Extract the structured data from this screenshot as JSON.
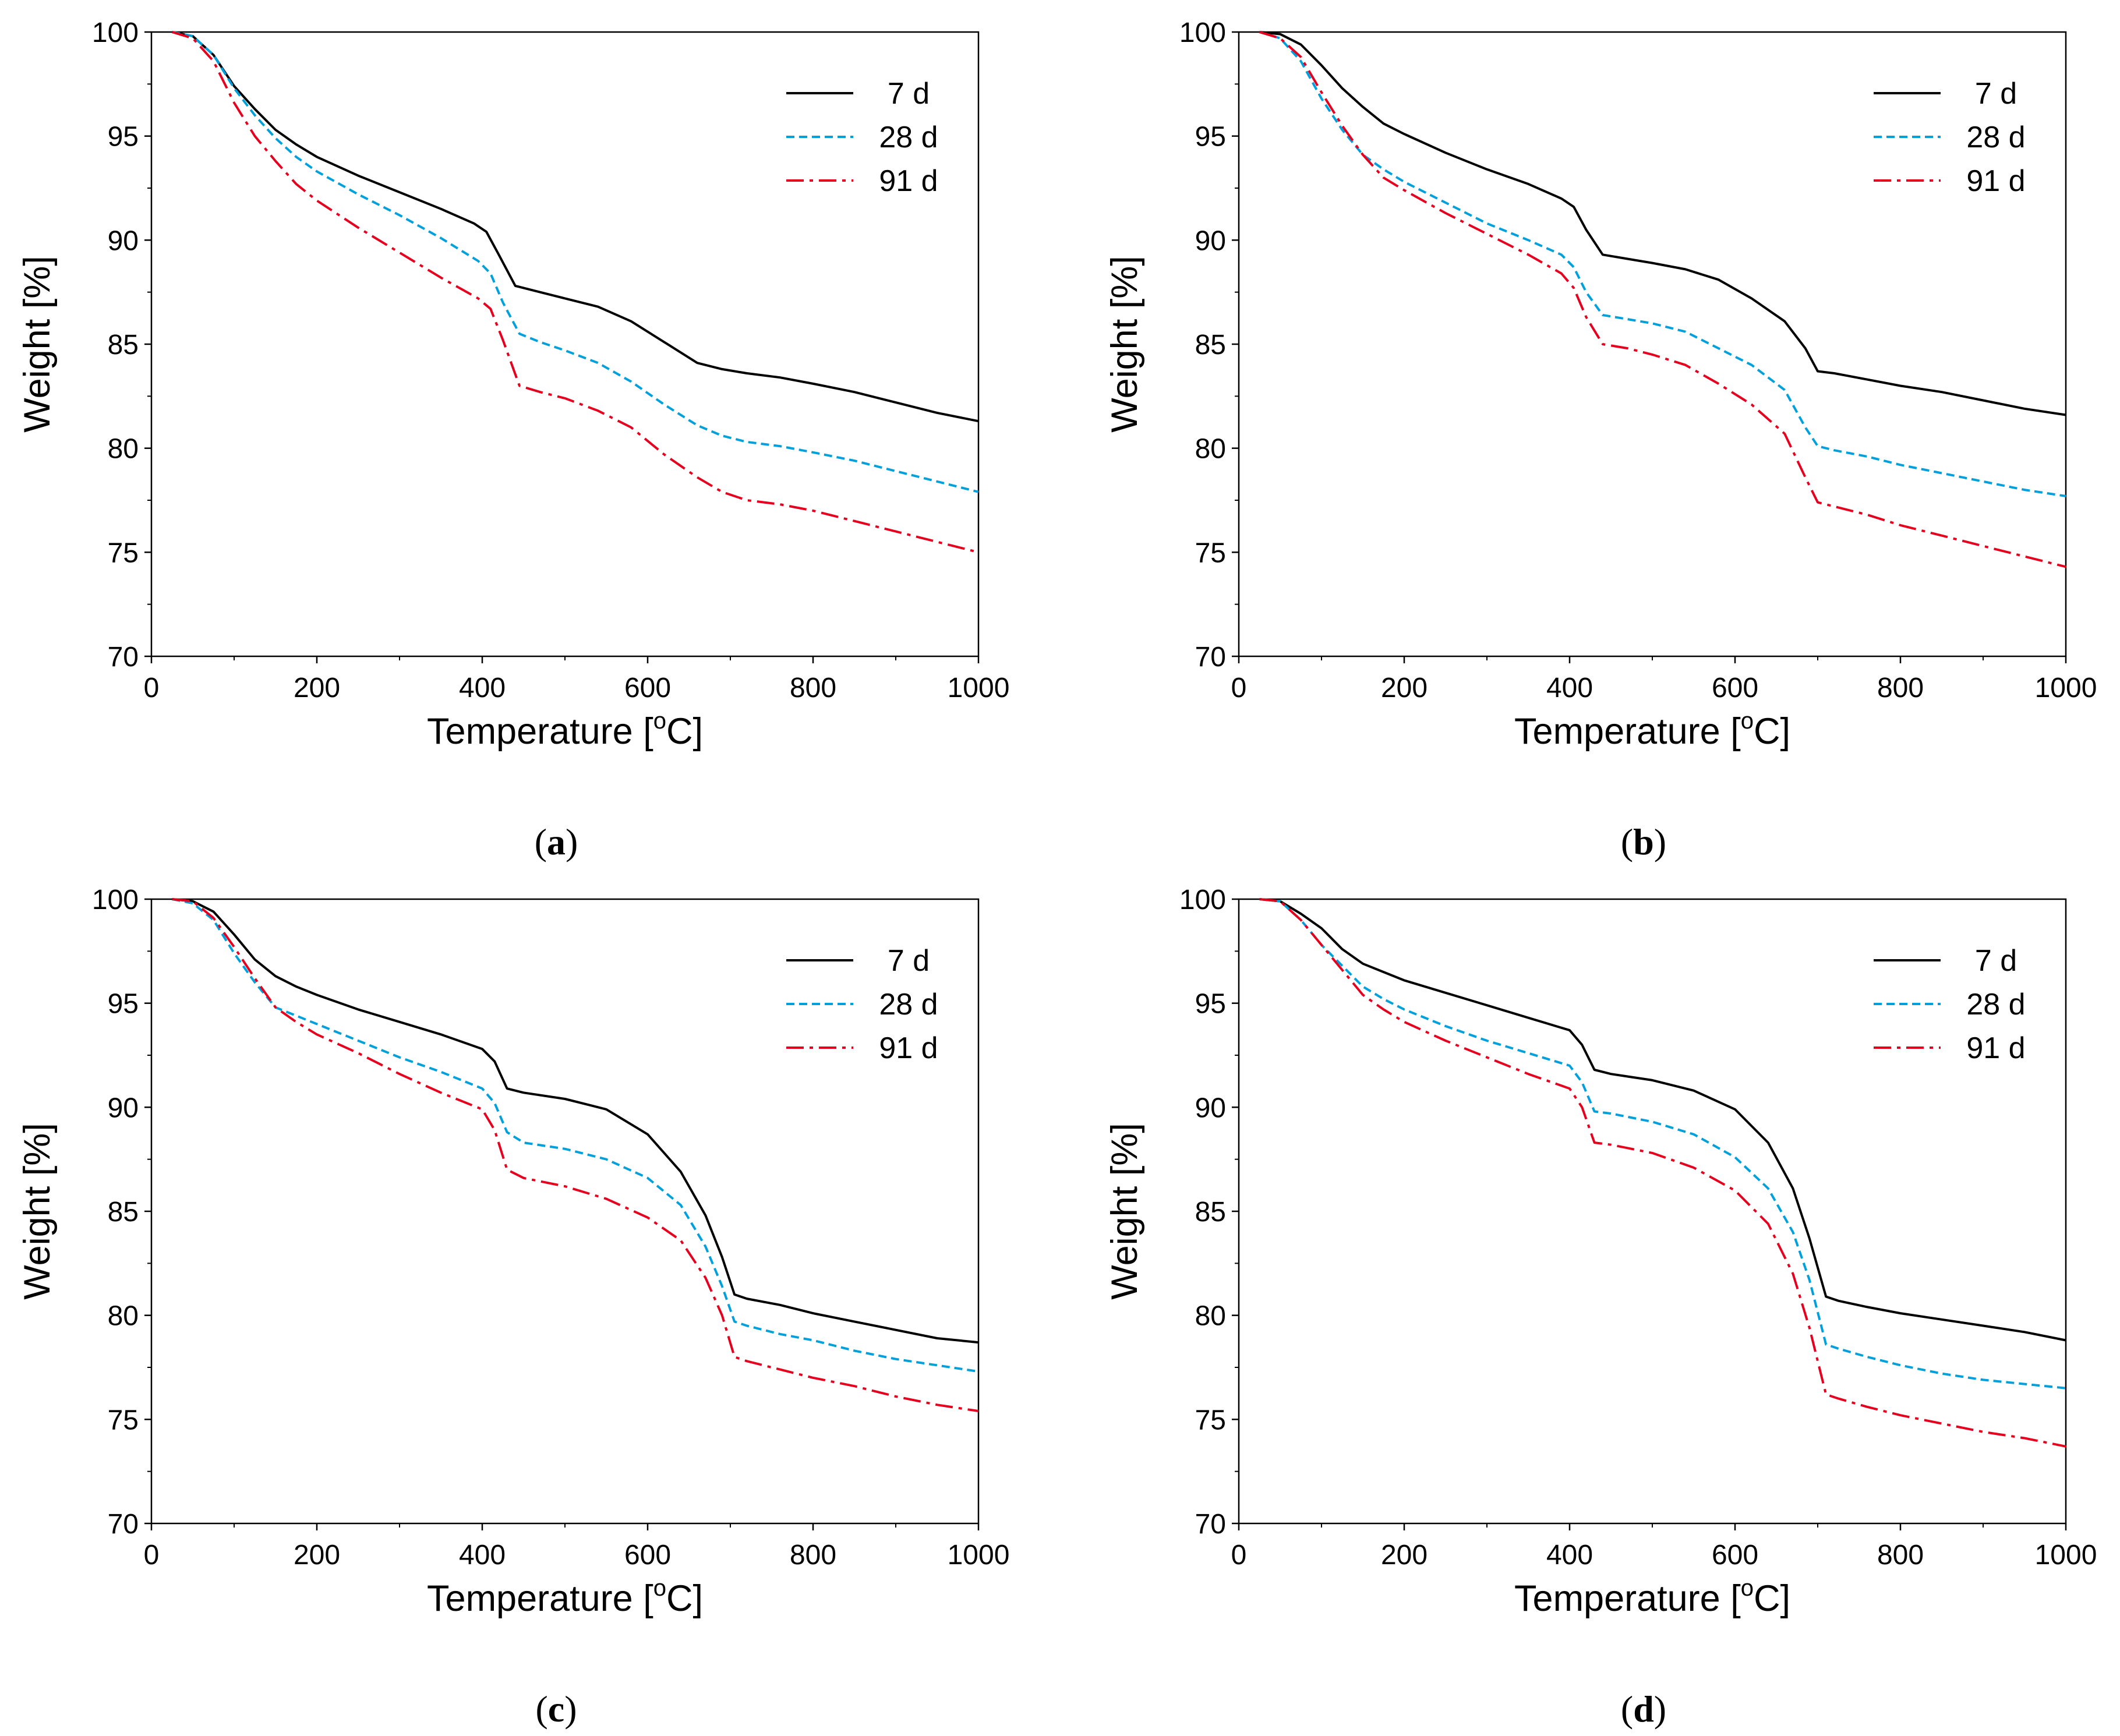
{
  "chart_data": [
    {
      "type": "line",
      "panel_label": "a",
      "xlabel": "Temperature [",
      "xlabel_sup": "o",
      "xlabel_end": "C]",
      "ylabel": "Weight [%]",
      "xlim": [
        0,
        1000
      ],
      "ylim": [
        70,
        100
      ],
      "x_ticks": [
        0,
        200,
        400,
        600,
        800,
        1000
      ],
      "y_ticks": [
        70,
        75,
        80,
        85,
        90,
        95,
        100
      ],
      "legend": "top-right",
      "series": [
        {
          "name": "7 d",
          "color": "#000000",
          "style": "solid",
          "x": [
            25,
            50,
            75,
            100,
            125,
            150,
            175,
            200,
            250,
            300,
            350,
            390,
            405,
            420,
            440,
            470,
            500,
            540,
            580,
            620,
            660,
            690,
            720,
            760,
            800,
            850,
            900,
            950,
            1000
          ],
          "y": [
            100,
            99.8,
            98.9,
            97.4,
            96.3,
            95.3,
            94.6,
            94.0,
            93.1,
            92.3,
            91.5,
            90.8,
            90.4,
            89.3,
            87.8,
            87.5,
            87.2,
            86.8,
            86.1,
            85.1,
            84.1,
            83.8,
            83.6,
            83.4,
            83.1,
            82.7,
            82.2,
            81.7,
            81.3
          ]
        },
        {
          "name": "28 d",
          "color": "#00a0dc",
          "style": "dashed",
          "x": [
            25,
            50,
            75,
            100,
            125,
            150,
            175,
            200,
            250,
            300,
            350,
            395,
            410,
            425,
            445,
            470,
            500,
            540,
            580,
            620,
            660,
            690,
            720,
            760,
            800,
            850,
            900,
            950,
            1000
          ],
          "y": [
            100,
            99.8,
            98.9,
            97.3,
            96.0,
            94.9,
            94.0,
            93.3,
            92.2,
            91.2,
            90.1,
            89.0,
            88.4,
            87.0,
            85.5,
            85.1,
            84.7,
            84.1,
            83.2,
            82.1,
            81.1,
            80.6,
            80.3,
            80.1,
            79.8,
            79.4,
            78.9,
            78.4,
            77.9
          ]
        },
        {
          "name": "91 d",
          "color": "#e6001e",
          "style": "dashdot",
          "x": [
            25,
            50,
            75,
            100,
            125,
            150,
            175,
            200,
            250,
            300,
            350,
            395,
            410,
            425,
            445,
            470,
            500,
            540,
            580,
            620,
            660,
            690,
            720,
            760,
            800,
            850,
            900,
            950,
            1000
          ],
          "y": [
            100,
            99.7,
            98.6,
            96.6,
            95.0,
            93.8,
            92.7,
            91.9,
            90.6,
            89.4,
            88.2,
            87.2,
            86.7,
            85.2,
            83.0,
            82.7,
            82.4,
            81.8,
            81.0,
            79.7,
            78.6,
            77.9,
            77.5,
            77.3,
            77.0,
            76.5,
            76.0,
            75.5,
            75.0
          ]
        }
      ]
    },
    {
      "type": "line",
      "panel_label": "b",
      "xlabel": "Temperature [",
      "xlabel_sup": "o",
      "xlabel_end": "C]",
      "ylabel": "Weight [%]",
      "xlim": [
        0,
        1000
      ],
      "ylim": [
        70,
        100
      ],
      "x_ticks": [
        0,
        200,
        400,
        600,
        800,
        1000
      ],
      "y_ticks": [
        70,
        75,
        80,
        85,
        90,
        95,
        100
      ],
      "legend": "top-right",
      "series": [
        {
          "name": "7 d",
          "color": "#000000",
          "style": "solid",
          "x": [
            25,
            50,
            75,
            100,
            125,
            150,
            175,
            200,
            250,
            300,
            350,
            390,
            405,
            420,
            440,
            470,
            500,
            540,
            580,
            620,
            660,
            685,
            700,
            720,
            760,
            800,
            850,
            900,
            950,
            1000
          ],
          "y": [
            100,
            99.9,
            99.4,
            98.4,
            97.3,
            96.4,
            95.6,
            95.1,
            94.2,
            93.4,
            92.7,
            92.0,
            91.6,
            90.5,
            89.3,
            89.1,
            88.9,
            88.6,
            88.1,
            87.2,
            86.1,
            84.8,
            83.7,
            83.6,
            83.3,
            83.0,
            82.7,
            82.3,
            81.9,
            81.6
          ]
        },
        {
          "name": "28 d",
          "color": "#00a0dc",
          "style": "dashed",
          "x": [
            25,
            50,
            75,
            100,
            125,
            150,
            175,
            200,
            250,
            300,
            350,
            390,
            405,
            420,
            440,
            470,
            500,
            540,
            580,
            620,
            660,
            685,
            700,
            720,
            760,
            800,
            850,
            900,
            950,
            1000
          ],
          "y": [
            100,
            99.7,
            98.6,
            96.8,
            95.3,
            94.1,
            93.4,
            92.8,
            91.8,
            90.8,
            90.0,
            89.3,
            88.7,
            87.5,
            86.4,
            86.2,
            86.0,
            85.6,
            84.8,
            84.0,
            82.8,
            81.0,
            80.1,
            79.9,
            79.6,
            79.2,
            78.8,
            78.4,
            78.0,
            77.7
          ]
        },
        {
          "name": "91 d",
          "color": "#e6001e",
          "style": "dashdot",
          "x": [
            25,
            50,
            75,
            100,
            125,
            150,
            175,
            200,
            250,
            300,
            350,
            390,
            405,
            420,
            440,
            470,
            500,
            540,
            580,
            620,
            660,
            685,
            700,
            720,
            760,
            800,
            850,
            900,
            950,
            1000
          ],
          "y": [
            100,
            99.7,
            98.8,
            97.1,
            95.5,
            94.1,
            93.0,
            92.4,
            91.3,
            90.3,
            89.3,
            88.4,
            87.7,
            86.3,
            85.0,
            84.8,
            84.5,
            84.0,
            83.1,
            82.1,
            80.7,
            78.6,
            77.4,
            77.2,
            76.8,
            76.3,
            75.8,
            75.3,
            74.8,
            74.3
          ]
        }
      ]
    },
    {
      "type": "line",
      "panel_label": "c",
      "xlabel": "Temperature [",
      "xlabel_sup": "o",
      "xlabel_end": "C]",
      "ylabel": "Weight [%]",
      "xlim": [
        0,
        1000
      ],
      "ylim": [
        70,
        100
      ],
      "x_ticks": [
        0,
        200,
        400,
        600,
        800,
        1000
      ],
      "y_ticks": [
        70,
        75,
        80,
        85,
        90,
        95,
        100
      ],
      "legend": "top-right",
      "series": [
        {
          "name": "7 d",
          "color": "#000000",
          "style": "solid",
          "x": [
            25,
            50,
            75,
            100,
            125,
            150,
            175,
            200,
            250,
            300,
            350,
            400,
            415,
            430,
            450,
            500,
            550,
            600,
            640,
            670,
            690,
            705,
            720,
            760,
            800,
            850,
            900,
            950,
            1000
          ],
          "y": [
            100,
            99.9,
            99.4,
            98.3,
            97.1,
            96.3,
            95.8,
            95.4,
            94.7,
            94.1,
            93.5,
            92.8,
            92.2,
            90.9,
            90.7,
            90.4,
            89.9,
            88.7,
            86.9,
            84.8,
            82.8,
            81.0,
            80.8,
            80.5,
            80.1,
            79.7,
            79.3,
            78.9,
            78.7
          ]
        },
        {
          "name": "28 d",
          "color": "#00a0dc",
          "style": "dashed",
          "x": [
            25,
            50,
            75,
            100,
            125,
            150,
            175,
            200,
            250,
            300,
            350,
            400,
            415,
            430,
            450,
            500,
            550,
            600,
            640,
            670,
            690,
            705,
            720,
            760,
            800,
            850,
            900,
            950,
            1000
          ],
          "y": [
            100,
            99.8,
            99.0,
            97.4,
            96.0,
            94.8,
            94.4,
            94.0,
            93.2,
            92.4,
            91.7,
            90.9,
            90.2,
            88.8,
            88.3,
            88.0,
            87.5,
            86.6,
            85.3,
            83.3,
            81.4,
            79.7,
            79.5,
            79.1,
            78.8,
            78.3,
            77.9,
            77.6,
            77.3
          ]
        },
        {
          "name": "91 d",
          "color": "#e6001e",
          "style": "dashdot",
          "x": [
            25,
            50,
            75,
            100,
            125,
            150,
            175,
            200,
            250,
            300,
            350,
            400,
            415,
            430,
            450,
            500,
            550,
            600,
            640,
            670,
            690,
            705,
            720,
            760,
            800,
            850,
            900,
            950,
            1000
          ],
          "y": [
            100,
            99.9,
            99.1,
            97.7,
            96.2,
            94.8,
            94.1,
            93.5,
            92.6,
            91.6,
            90.7,
            89.9,
            88.9,
            87.0,
            86.6,
            86.2,
            85.6,
            84.7,
            83.6,
            81.8,
            80.0,
            78.0,
            77.8,
            77.4,
            77.0,
            76.6,
            76.1,
            75.7,
            75.4
          ]
        }
      ]
    },
    {
      "type": "line",
      "panel_label": "d",
      "xlabel": "Temperature [",
      "xlabel_sup": "o",
      "xlabel_end": "C]",
      "ylabel": "Weight [%]",
      "xlim": [
        0,
        1000
      ],
      "ylim": [
        70,
        100
      ],
      "x_ticks": [
        0,
        200,
        400,
        600,
        800,
        1000
      ],
      "y_ticks": [
        70,
        75,
        80,
        85,
        90,
        95,
        100
      ],
      "legend": "top-right",
      "series": [
        {
          "name": "7 d",
          "color": "#000000",
          "style": "solid",
          "x": [
            25,
            50,
            75,
            100,
            125,
            150,
            175,
            200,
            250,
            300,
            350,
            400,
            415,
            430,
            450,
            500,
            550,
            600,
            640,
            670,
            690,
            710,
            725,
            760,
            800,
            850,
            900,
            950,
            1000
          ],
          "y": [
            100,
            99.9,
            99.3,
            98.6,
            97.6,
            96.9,
            96.5,
            96.1,
            95.5,
            94.9,
            94.3,
            93.7,
            93.0,
            91.8,
            91.6,
            91.3,
            90.8,
            89.9,
            88.3,
            86.1,
            83.7,
            80.9,
            80.7,
            80.4,
            80.1,
            79.8,
            79.5,
            79.2,
            78.8
          ]
        },
        {
          "name": "28 d",
          "color": "#00a0dc",
          "style": "dashed",
          "x": [
            25,
            50,
            75,
            100,
            125,
            150,
            175,
            200,
            250,
            300,
            350,
            400,
            415,
            430,
            450,
            500,
            550,
            600,
            640,
            670,
            690,
            710,
            725,
            760,
            800,
            850,
            900,
            950,
            1000
          ],
          "y": [
            100,
            99.9,
            99.0,
            97.8,
            96.8,
            95.8,
            95.2,
            94.7,
            93.9,
            93.2,
            92.6,
            92.0,
            91.2,
            89.8,
            89.7,
            89.3,
            88.7,
            87.6,
            86.1,
            84.0,
            81.7,
            78.6,
            78.4,
            78.0,
            77.6,
            77.2,
            76.9,
            76.7,
            76.5
          ]
        },
        {
          "name": "91 d",
          "color": "#e6001e",
          "style": "dashdot",
          "x": [
            25,
            50,
            75,
            100,
            125,
            150,
            175,
            200,
            250,
            300,
            350,
            400,
            415,
            430,
            450,
            500,
            550,
            600,
            640,
            670,
            690,
            710,
            725,
            760,
            800,
            850,
            900,
            950,
            1000
          ],
          "y": [
            100,
            99.9,
            99.0,
            97.8,
            96.6,
            95.4,
            94.7,
            94.1,
            93.2,
            92.4,
            91.6,
            90.9,
            90.0,
            88.3,
            88.2,
            87.8,
            87.1,
            86.0,
            84.4,
            82.0,
            79.4,
            76.2,
            76.0,
            75.6,
            75.2,
            74.8,
            74.4,
            74.1,
            73.7
          ]
        }
      ]
    }
  ]
}
